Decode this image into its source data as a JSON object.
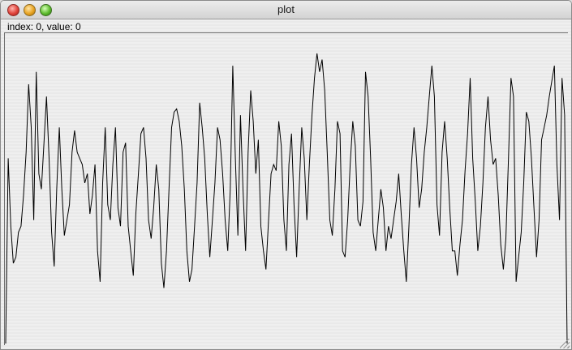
{
  "window": {
    "title": "plot"
  },
  "status": {
    "text": "index: 0, value: 0"
  },
  "plot": {
    "stroke": "#000000",
    "ylim": [
      0,
      1
    ],
    "values": [
      0.0,
      0.6,
      0.38,
      0.26,
      0.28,
      0.36,
      0.38,
      0.48,
      0.62,
      0.84,
      0.7,
      0.4,
      0.88,
      0.55,
      0.5,
      0.65,
      0.8,
      0.6,
      0.36,
      0.25,
      0.5,
      0.7,
      0.5,
      0.35,
      0.4,
      0.45,
      0.62,
      0.69,
      0.62,
      0.6,
      0.58,
      0.52,
      0.55,
      0.42,
      0.48,
      0.58,
      0.3,
      0.2,
      0.52,
      0.7,
      0.45,
      0.4,
      0.58,
      0.7,
      0.44,
      0.38,
      0.62,
      0.65,
      0.38,
      0.3,
      0.22,
      0.42,
      0.55,
      0.68,
      0.7,
      0.6,
      0.4,
      0.34,
      0.44,
      0.58,
      0.5,
      0.26,
      0.18,
      0.3,
      0.5,
      0.7,
      0.75,
      0.76,
      0.72,
      0.64,
      0.5,
      0.3,
      0.2,
      0.24,
      0.38,
      0.52,
      0.78,
      0.7,
      0.6,
      0.42,
      0.28,
      0.4,
      0.52,
      0.7,
      0.66,
      0.55,
      0.4,
      0.3,
      0.5,
      0.9,
      0.6,
      0.35,
      0.74,
      0.5,
      0.3,
      0.62,
      0.82,
      0.72,
      0.55,
      0.66,
      0.38,
      0.3,
      0.24,
      0.4,
      0.55,
      0.58,
      0.56,
      0.72,
      0.64,
      0.4,
      0.3,
      0.58,
      0.68,
      0.45,
      0.28,
      0.5,
      0.7,
      0.6,
      0.4,
      0.58,
      0.74,
      0.86,
      0.94,
      0.88,
      0.92,
      0.82,
      0.62,
      0.4,
      0.35,
      0.5,
      0.72,
      0.68,
      0.3,
      0.28,
      0.4,
      0.58,
      0.72,
      0.64,
      0.4,
      0.38,
      0.46,
      0.88,
      0.8,
      0.6,
      0.36,
      0.3,
      0.4,
      0.5,
      0.44,
      0.3,
      0.38,
      0.34,
      0.4,
      0.46,
      0.55,
      0.42,
      0.3,
      0.2,
      0.38,
      0.58,
      0.7,
      0.6,
      0.44,
      0.5,
      0.62,
      0.7,
      0.8,
      0.9,
      0.8,
      0.45,
      0.35,
      0.62,
      0.72,
      0.6,
      0.44,
      0.3,
      0.3,
      0.22,
      0.32,
      0.4,
      0.56,
      0.68,
      0.86,
      0.6,
      0.46,
      0.3,
      0.38,
      0.52,
      0.7,
      0.8,
      0.66,
      0.58,
      0.6,
      0.48,
      0.32,
      0.24,
      0.34,
      0.6,
      0.86,
      0.8,
      0.2,
      0.28,
      0.36,
      0.52,
      0.75,
      0.72,
      0.6,
      0.44,
      0.28,
      0.4,
      0.66,
      0.7,
      0.74,
      0.8,
      0.85,
      0.9,
      0.58,
      0.4,
      0.86,
      0.74,
      0.0
    ]
  }
}
